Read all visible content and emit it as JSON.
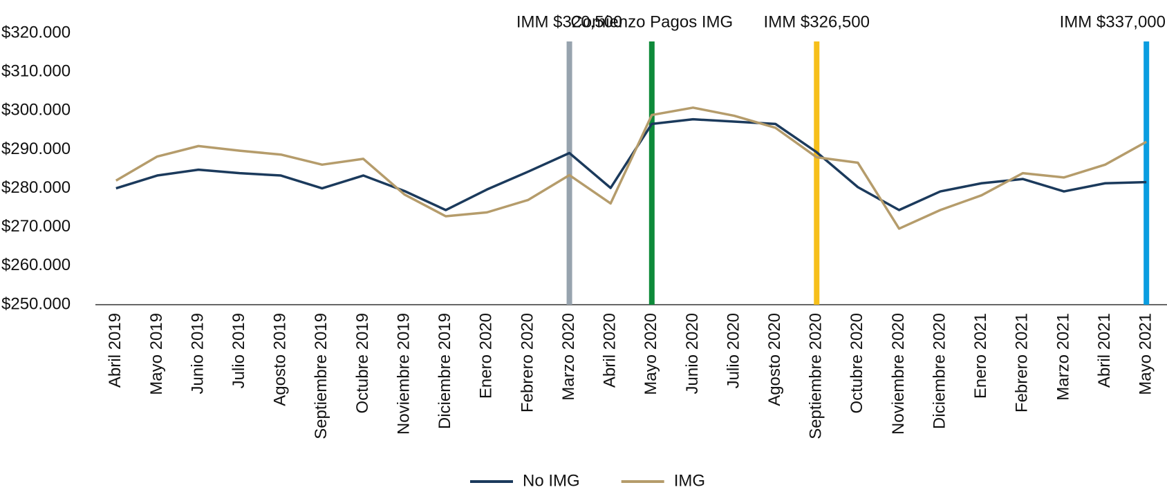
{
  "chart_data": {
    "type": "line",
    "categories": [
      "Abril 2019",
      "Mayo 2019",
      "Junio 2019",
      "Julio 2019",
      "Agosto 2019",
      "Septiembre 2019",
      "Octubre 2019",
      "Noviembre 2019",
      "Diciembre 2019",
      "Enero 2020",
      "Febrero 2020",
      "Marzo 2020",
      "Abril 2020",
      "Mayo 2020",
      "Junio 2020",
      "Julio 2020",
      "Agosto 2020",
      "Septiembre 2020",
      "Octubre 2020",
      "Noviembre 2020",
      "Diciembre 2020",
      "Enero 2021",
      "Febrero 2021",
      "Marzo 2021",
      "Abril 2021",
      "Mayo 2021"
    ],
    "series": [
      {
        "name": "No IMG",
        "color": "#1b3a5c",
        "values": [
          280000,
          283300,
          284800,
          283900,
          283300,
          280000,
          283300,
          279300,
          274400,
          279700,
          284300,
          289100,
          280100,
          296600,
          297800,
          297200,
          296600,
          289300,
          280300,
          274400,
          279200,
          281300,
          282400,
          279200,
          281300,
          281600
        ]
      },
      {
        "name": "IMG",
        "color": "#b59c6b",
        "values": [
          282000,
          288200,
          290900,
          289700,
          288700,
          286100,
          287600,
          278400,
          272800,
          273800,
          277000,
          283400,
          276100,
          298900,
          300800,
          298700,
          295600,
          288000,
          286600,
          269600,
          274400,
          278200,
          283900,
          282800,
          286100,
          292000
        ]
      }
    ],
    "annotations": [
      {
        "text": "IMM $320,500",
        "at": "Marzo 2020",
        "color": "#97a3ae"
      },
      {
        "text": "Comienzo Pagos IMG",
        "at": "Mayo 2020",
        "color": "#0e8a3a"
      },
      {
        "text": "IMM $326,500",
        "at": "Septiembre 2020",
        "color": "#f6bf1a"
      },
      {
        "text": "IMM $337,000",
        "at": "Mayo 2021",
        "color": "#0a9de0"
      }
    ],
    "ylim": [
      250000,
      320000
    ],
    "yticks": [
      {
        "value": 250000,
        "label": "$250.000"
      },
      {
        "value": 260000,
        "label": "$260.000"
      },
      {
        "value": 270000,
        "label": "$270.000"
      },
      {
        "value": 280000,
        "label": "$280.000"
      },
      {
        "value": 290000,
        "label": "$290.000"
      },
      {
        "value": 300000,
        "label": "$300.000"
      },
      {
        "value": 310000,
        "label": "$310.000"
      },
      {
        "value": 320000,
        "label": "$320.000"
      }
    ],
    "grid": false,
    "legend": "bottom"
  }
}
